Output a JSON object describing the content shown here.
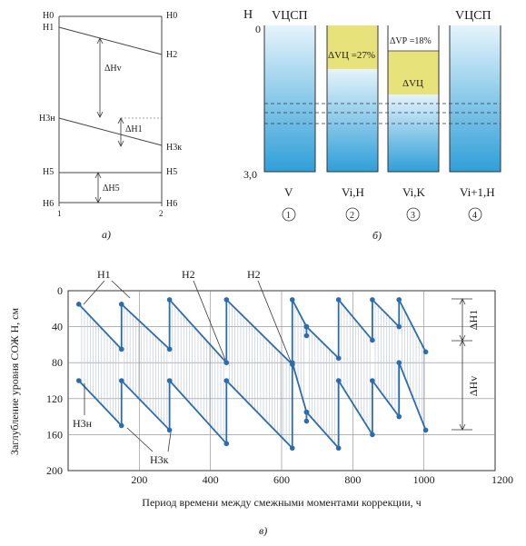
{
  "panel_a": {
    "caption": "а)",
    "left_labels": [
      "H0",
      "H1",
      "H3н",
      "H5",
      "H6"
    ],
    "right_labels": [
      "H0",
      "H2",
      "H3к",
      "H5",
      "H6"
    ],
    "delta_labels": [
      "ΔHv",
      "ΔH1",
      "ΔH5"
    ],
    "axis_ticks": [
      "1",
      "2"
    ]
  },
  "panel_b": {
    "caption": "б)",
    "axis_label": "H",
    "y_top": "0",
    "y_bottom": "3,0",
    "top_left_label": "VЦСП",
    "top_right_label": "VЦСП",
    "tank2_label": "ΔVЦ =27%",
    "tank3_top_label": "ΔVР =18%",
    "tank3_mid_label": "ΔVЦ",
    "bottom_labels": [
      "V",
      "Vi,H",
      "Vi,K",
      "Vi+1,H"
    ],
    "circle_labels": [
      "1",
      "2",
      "3",
      "4"
    ],
    "colors": {
      "water_top": "#cfe8f6",
      "water_bottom": "#3aa7dd",
      "yellow": "#e8e27a"
    }
  },
  "panel_c": {
    "caption": "в)",
    "ylabel": "Заглубление уровня СОЖ Н, см",
    "xlabel": "Период времени между смежными моментами коррекции, ч",
    "annotations": [
      "H1",
      "H2",
      "H2",
      "H3н",
      "H3к",
      "ΔH1",
      "ΔHv"
    ]
  },
  "chart_data": {
    "type": "line",
    "xlim": [
      0,
      1200
    ],
    "ylim": [
      200,
      0
    ],
    "x_ticks": [
      "200",
      "400",
      "600",
      "800",
      "1000",
      "1200"
    ],
    "y_ticks": [
      "0",
      "40",
      "80",
      "120",
      "160",
      "200"
    ],
    "grid": true,
    "color": "#2b6cb0",
    "series": [
      {
        "values": [
          [
            30,
            15
          ],
          [
            150,
            65
          ],
          [
            150,
            15
          ],
          [
            285,
            65
          ],
          [
            285,
            10
          ],
          [
            445,
            80
          ],
          [
            445,
            10
          ],
          [
            630,
            82
          ],
          [
            630,
            10
          ],
          [
            670,
            40
          ],
          [
            670,
            50
          ],
          [
            670,
            40
          ],
          [
            760,
            75
          ],
          [
            760,
            10
          ],
          [
            855,
            55
          ],
          [
            855,
            10
          ],
          [
            930,
            40
          ],
          [
            930,
            10
          ],
          [
            1005,
            68
          ]
        ]
      },
      {
        "values": [
          [
            30,
            100
          ],
          [
            150,
            150
          ],
          [
            150,
            100
          ],
          [
            285,
            155
          ],
          [
            285,
            100
          ],
          [
            445,
            170
          ],
          [
            445,
            100
          ],
          [
            630,
            175
          ],
          [
            630,
            80
          ],
          [
            670,
            135
          ],
          [
            670,
            145
          ],
          [
            670,
            135
          ],
          [
            760,
            175
          ],
          [
            760,
            100
          ],
          [
            855,
            160
          ],
          [
            855,
            100
          ],
          [
            930,
            140
          ],
          [
            930,
            80
          ],
          [
            1005,
            155
          ]
        ]
      }
    ]
  }
}
